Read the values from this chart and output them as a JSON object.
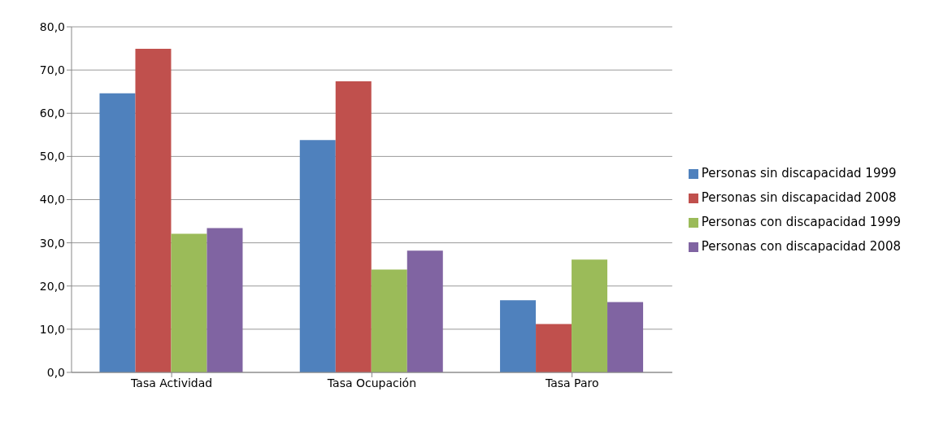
{
  "chart_data": {
    "type": "bar",
    "categories": [
      "Tasa Actividad",
      "Tasa Ocupación",
      "Tasa Paro"
    ],
    "series": [
      {
        "name": "Personas sin discapacidad 1999",
        "color": "#4f81bd",
        "values": [
          64.6,
          53.8,
          16.7
        ]
      },
      {
        "name": "Personas sin discapacidad 2008",
        "color": "#c0504d",
        "values": [
          74.9,
          67.4,
          11.2
        ]
      },
      {
        "name": "Personas con discapacidad 1999",
        "color": "#9bbb59",
        "values": [
          32.1,
          23.8,
          26.1
        ]
      },
      {
        "name": "Personas con discapacidad 2008",
        "color": "#8064a2",
        "values": [
          33.4,
          28.2,
          16.3
        ]
      }
    ],
    "ylim": [
      0,
      80
    ],
    "yticks": [
      {
        "value": 0,
        "label": "0,0"
      },
      {
        "value": 10,
        "label": "10,0"
      },
      {
        "value": 20,
        "label": "20,0"
      },
      {
        "value": 30,
        "label": "30,0"
      },
      {
        "value": 40,
        "label": "40,0"
      },
      {
        "value": 50,
        "label": "50,0"
      },
      {
        "value": 60,
        "label": "60,0"
      },
      {
        "value": 70,
        "label": "70,0"
      },
      {
        "value": 80,
        "label": "80,0"
      }
    ],
    "grid": "y",
    "legend": "right"
  }
}
